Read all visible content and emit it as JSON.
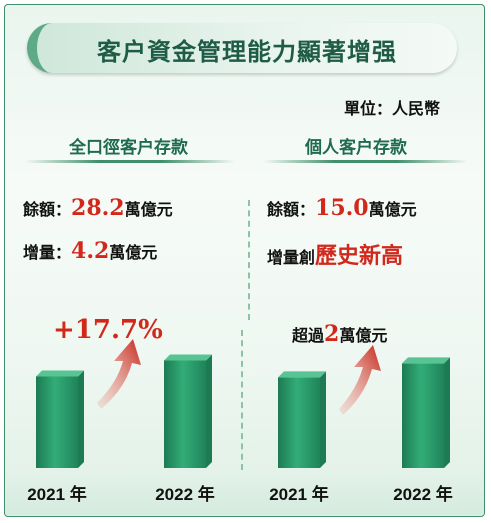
{
  "title": "客户資金管理能力顯著增强",
  "unit": "單位：人民幣",
  "colors": {
    "bar": "#2a9a6c",
    "bar_top": "#58c494",
    "bar_dark": "#1d7a53",
    "accent": "#d1281b"
  },
  "left": {
    "heading": "全口徑客户存款",
    "balance_label": "餘額：",
    "balance_value": "28.2",
    "balance_unit": "萬億元",
    "increase_label": "增量：",
    "increase_value": "4.2",
    "increase_unit": "萬億元",
    "growth_text": "+17.7%"
  },
  "right": {
    "heading": "個人客户存款",
    "balance_label": "餘額：",
    "balance_value": "15.0",
    "balance_unit": "萬億元",
    "increase_label": "增量創",
    "increase_highlight": "歷史新高",
    "note_prefix": "超過",
    "note_value": "2",
    "note_unit": "萬億元"
  },
  "chart_data": [
    {
      "type": "bar",
      "title": "全口徑客户存款",
      "categories": [
        "2021 年",
        "2022 年"
      ],
      "values": [
        24.0,
        28.2
      ],
      "ylim": [
        0,
        32
      ]
    },
    {
      "type": "bar",
      "title": "個人客户存款",
      "categories": [
        "2021 年",
        "2022 年"
      ],
      "values": [
        13.0,
        15.0
      ],
      "ylim": [
        0,
        17.5
      ]
    }
  ]
}
